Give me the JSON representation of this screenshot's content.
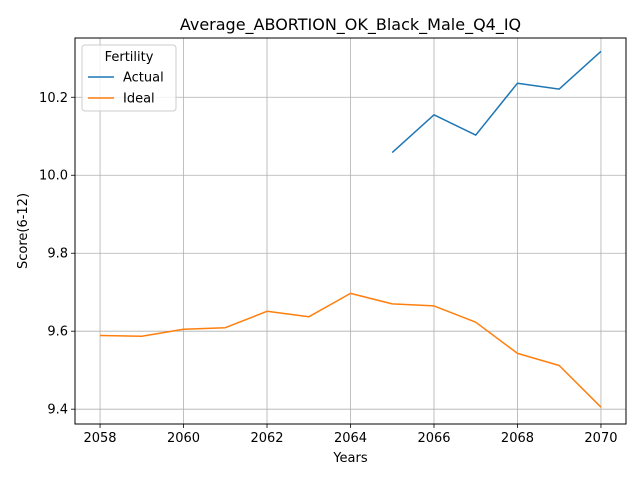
{
  "chart_data": {
    "type": "line",
    "title": "Average_ABORTION_OK_Black_Male_Q4_IQ",
    "xlabel": "Years",
    "ylabel": "Score(6-12)",
    "xlim": [
      2057.4,
      2070.6
    ],
    "ylim": [
      9.362,
      10.352
    ],
    "xticks": [
      2058,
      2060,
      2062,
      2064,
      2066,
      2068,
      2070
    ],
    "yticks": [
      9.4,
      9.6,
      9.8,
      10.0,
      10.2
    ],
    "xtick_labels": [
      "2058",
      "2060",
      "2062",
      "2064",
      "2066",
      "2068",
      "2070"
    ],
    "ytick_labels": [
      "9.4",
      "9.6",
      "9.8",
      "10.0",
      "10.2"
    ],
    "grid": true,
    "legend": {
      "title": "Fertility",
      "placement": "top-left"
    },
    "series": [
      {
        "name": "Actual",
        "color": "#1f77b4",
        "x": [
          2065,
          2066,
          2067,
          2068,
          2069,
          2070
        ],
        "y": [
          10.058,
          10.155,
          10.103,
          10.236,
          10.221,
          10.318
        ]
      },
      {
        "name": "Ideal",
        "color": "#ff7f0e",
        "x": [
          2058,
          2059,
          2060,
          2061,
          2062,
          2063,
          2064,
          2065,
          2066,
          2067,
          2068,
          2069,
          2070
        ],
        "y": [
          9.589,
          9.587,
          9.605,
          9.609,
          9.651,
          9.637,
          9.697,
          9.67,
          9.665,
          9.623,
          9.543,
          9.512,
          9.405
        ]
      }
    ]
  }
}
